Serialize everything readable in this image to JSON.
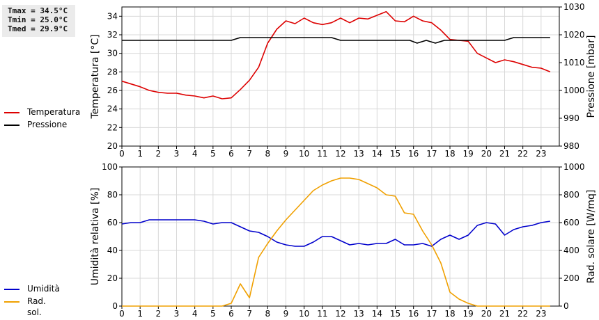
{
  "stats": {
    "tmax": "Tmax = 34.5°C",
    "tmin": "Tmin = 25.0°C",
    "tmed": "Tmed = 29.9°C"
  },
  "legend_top": [
    {
      "label": "Temperatura",
      "color": "#dd0000"
    },
    {
      "label": "Pressione",
      "color": "#000000"
    }
  ],
  "legend_bottom": [
    {
      "label": "Umidità",
      "color": "#0000cc"
    },
    {
      "label": "Rad. sol.",
      "color": "#f0a000"
    }
  ],
  "chart_data": [
    {
      "type": "line",
      "xlabel": "",
      "ylabel": "Temperatura [°C]",
      "y2label": "Pressione [mbar]",
      "xlim": [
        0,
        24
      ],
      "ylim": [
        20,
        35
      ],
      "y2lim": [
        980,
        1030
      ],
      "xticks": [
        0,
        1,
        2,
        3,
        4,
        5,
        6,
        7,
        8,
        9,
        10,
        11,
        12,
        13,
        14,
        15,
        16,
        17,
        18,
        19,
        20,
        21,
        22,
        23
      ],
      "yticks": [
        20,
        22,
        24,
        26,
        28,
        30,
        32,
        34
      ],
      "y2ticks": [
        980,
        990,
        1000,
        1010,
        1020,
        1030
      ],
      "grid": true,
      "series": [
        {
          "name": "Temperatura",
          "color": "#dd0000",
          "axis": "left",
          "x": [
            0,
            0.5,
            1,
            1.5,
            2,
            2.5,
            3,
            3.5,
            4,
            4.5,
            5,
            5.5,
            6,
            6.5,
            7,
            7.5,
            8,
            8.5,
            9,
            9.5,
            10,
            10.5,
            11,
            11.5,
            12,
            12.5,
            13,
            13.5,
            14,
            14.5,
            15,
            15.5,
            16,
            16.5,
            17,
            17.5,
            18,
            18.5,
            19,
            19.5,
            20,
            20.5,
            21,
            21.5,
            22,
            22.5,
            23,
            23.5
          ],
          "y": [
            27.0,
            26.7,
            26.4,
            26.0,
            25.8,
            25.7,
            25.7,
            25.5,
            25.4,
            25.2,
            25.4,
            25.1,
            25.2,
            26.1,
            27.1,
            28.5,
            31.1,
            32.6,
            33.5,
            33.2,
            33.8,
            33.3,
            33.1,
            33.3,
            33.8,
            33.3,
            33.8,
            33.7,
            34.1,
            34.5,
            33.5,
            33.4,
            34.0,
            33.5,
            33.3,
            32.5,
            31.5,
            31.4,
            31.3,
            30.0,
            29.5,
            29.0,
            29.3,
            29.1,
            28.8,
            28.5,
            28.4,
            28.0
          ]
        },
        {
          "name": "Pressione",
          "color": "#000000",
          "axis": "right",
          "x": [
            0,
            6,
            6.5,
            7,
            8,
            9,
            10,
            11,
            11.5,
            12,
            13,
            14,
            15,
            15.8,
            16.2,
            16.7,
            17.2,
            17.7,
            18,
            19,
            20,
            21,
            21.5,
            22,
            23,
            23.5
          ],
          "y": [
            1018,
            1018,
            1019,
            1019,
            1019,
            1019,
            1019,
            1019,
            1019,
            1018,
            1018,
            1018,
            1018,
            1018,
            1017,
            1018,
            1017,
            1018,
            1018,
            1018,
            1018,
            1018,
            1019,
            1019,
            1019,
            1019
          ]
        }
      ]
    },
    {
      "type": "line",
      "xlabel": "",
      "ylabel": "Umidità relativa [%]",
      "y2label": "Rad. solare [W/mq]",
      "xlim": [
        0,
        24
      ],
      "ylim": [
        0,
        100
      ],
      "y2lim": [
        0,
        1000
      ],
      "xticks": [
        0,
        1,
        2,
        3,
        4,
        5,
        6,
        7,
        8,
        9,
        10,
        11,
        12,
        13,
        14,
        15,
        16,
        17,
        18,
        19,
        20,
        21,
        22,
        23
      ],
      "yticks": [
        0,
        20,
        40,
        60,
        80,
        100
      ],
      "y2ticks": [
        0,
        200,
        400,
        600,
        800,
        1000
      ],
      "grid": true,
      "series": [
        {
          "name": "Umidità",
          "color": "#0000cc",
          "axis": "left",
          "x": [
            0,
            0.5,
            1,
            1.5,
            2,
            2.5,
            3,
            3.5,
            4,
            4.5,
            5,
            5.5,
            6,
            6.5,
            7,
            7.5,
            8,
            8.5,
            9,
            9.5,
            10,
            10.5,
            11,
            11.5,
            12,
            12.5,
            13,
            13.5,
            14,
            14.5,
            15,
            15.5,
            16,
            16.5,
            17,
            17.5,
            18,
            18.5,
            19,
            19.5,
            20,
            20.5,
            21,
            21.5,
            22,
            22.5,
            23,
            23.5
          ],
          "y": [
            59,
            60,
            60,
            62,
            62,
            62,
            62,
            62,
            62,
            61,
            59,
            60,
            60,
            57,
            54,
            53,
            50,
            46,
            44,
            43,
            43,
            46,
            50,
            50,
            47,
            44,
            45,
            44,
            45,
            45,
            48,
            44,
            44,
            45,
            43,
            48,
            51,
            48,
            51,
            58,
            60,
            59,
            51,
            55,
            57,
            58,
            60,
            61
          ]
        },
        {
          "name": "Rad. sol.",
          "color": "#f0a000",
          "axis": "right",
          "x": [
            0,
            0.5,
            1,
            1.5,
            2,
            2.5,
            3,
            3.5,
            4,
            4.5,
            5,
            5.5,
            6,
            6.5,
            7,
            7.5,
            8,
            8.5,
            9,
            9.5,
            10,
            10.5,
            11,
            11.5,
            12,
            12.5,
            13,
            13.5,
            14,
            14.5,
            15,
            15.5,
            16,
            16.5,
            17,
            17.5,
            18,
            18.5,
            19,
            19.5,
            20,
            20.5,
            21,
            21.5,
            22,
            22.5,
            23,
            23.5
          ],
          "y": [
            0,
            0,
            0,
            0,
            0,
            0,
            0,
            0,
            0,
            0,
            0,
            0,
            20,
            160,
            60,
            350,
            450,
            540,
            620,
            690,
            760,
            830,
            870,
            900,
            920,
            920,
            910,
            880,
            850,
            800,
            790,
            670,
            660,
            540,
            440,
            310,
            100,
            50,
            20,
            0,
            0,
            0,
            0,
            0,
            0,
            0,
            0,
            0
          ]
        }
      ]
    }
  ]
}
